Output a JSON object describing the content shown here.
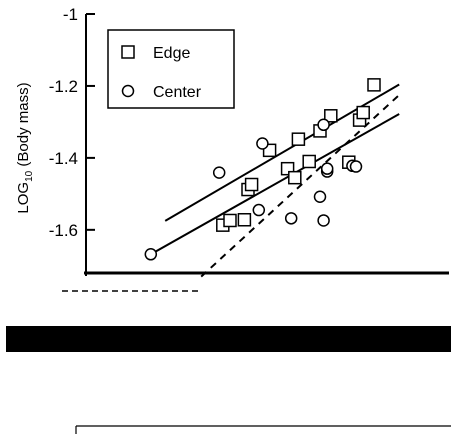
{
  "chart_data": {
    "type": "scatter",
    "title": "",
    "ylabel": "LOG10 (Body mass)",
    "ylabel_parts": {
      "prefix": "LOG",
      "subscript": "10",
      "suffix": " (Body mass)"
    },
    "ylim": [
      -1.72,
      -1.0
    ],
    "xlim": [
      0,
      1
    ],
    "yticks": [
      -1.0,
      -1.2,
      -1.4,
      -1.6
    ],
    "ytick_labels": [
      "-1",
      "-1.2",
      "-1.4",
      "-1.6"
    ],
    "legend": {
      "placement": "top-left",
      "entries": [
        "Edge",
        "Center"
      ]
    },
    "series": [
      {
        "name": "Edge",
        "marker": "square",
        "points": [
          [
            0.38,
            -1.587
          ],
          [
            0.4,
            -1.574
          ],
          [
            0.44,
            -1.572
          ],
          [
            0.45,
            -1.488
          ],
          [
            0.46,
            -1.474
          ],
          [
            0.51,
            -1.379
          ],
          [
            0.56,
            -1.43
          ],
          [
            0.58,
            -1.455
          ],
          [
            0.59,
            -1.348
          ],
          [
            0.62,
            -1.41
          ],
          [
            0.65,
            -1.325
          ],
          [
            0.68,
            -1.283
          ],
          [
            0.73,
            -1.412
          ],
          [
            0.76,
            -1.295
          ],
          [
            0.77,
            -1.274
          ],
          [
            0.8,
            -1.197
          ]
        ]
      },
      {
        "name": "Center",
        "marker": "circle",
        "points": [
          [
            0.18,
            -1.668
          ],
          [
            0.37,
            -1.441
          ],
          [
            0.48,
            -1.545
          ],
          [
            0.49,
            -1.36
          ],
          [
            0.57,
            -1.568
          ],
          [
            0.66,
            -1.308
          ],
          [
            0.67,
            -1.438
          ],
          [
            0.67,
            -1.43
          ],
          [
            0.65,
            -1.508
          ],
          [
            0.66,
            -1.574
          ],
          [
            0.74,
            -1.422
          ],
          [
            0.75,
            -1.424
          ]
        ]
      }
    ],
    "fit_lines": [
      {
        "series": "Edge",
        "style": "solid",
        "x": [
          0.22,
          0.87
        ],
        "y": [
          -1.575,
          -1.196
        ]
      },
      {
        "series": "Center",
        "style": "solid",
        "x": [
          0.18,
          0.87
        ],
        "y": [
          -1.668,
          -1.278
        ]
      },
      {
        "style": "dashed",
        "x": [
          0.32,
          0.87
        ],
        "y": [
          -1.73,
          -1.225
        ]
      }
    ]
  }
}
